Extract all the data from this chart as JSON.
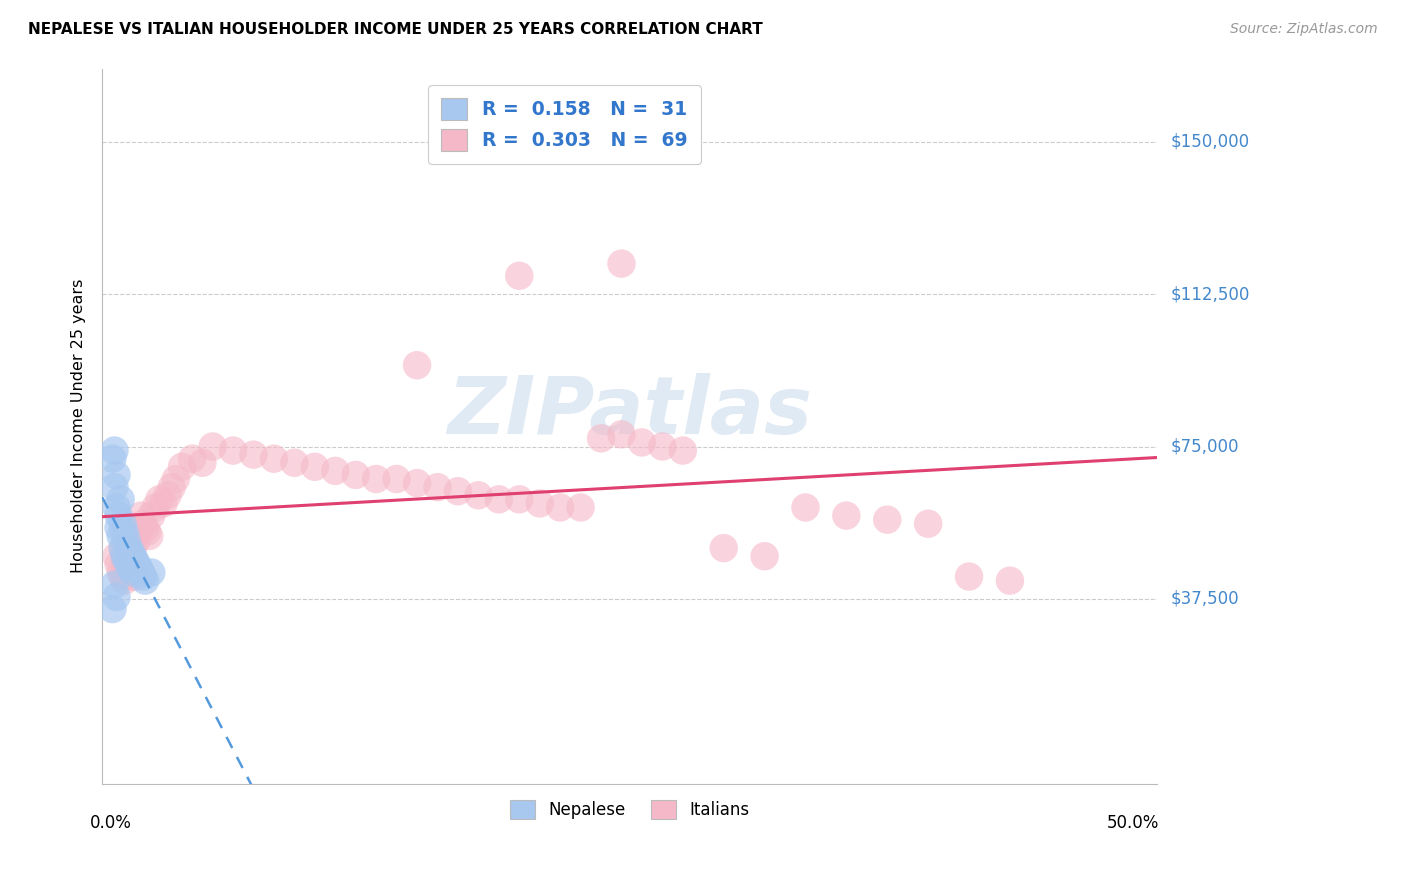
{
  "title": "NEPALESE VS ITALIAN HOUSEHOLDER INCOME UNDER 25 YEARS CORRELATION CHART",
  "source": "Source: ZipAtlas.com",
  "ylabel": "Householder Income Under 25 years",
  "ytick_labels": [
    "$37,500",
    "$75,000",
    "$112,500",
    "$150,000"
  ],
  "ytick_values": [
    37500,
    75000,
    112500,
    150000
  ],
  "ymin": -8000,
  "ymax": 168000,
  "xmin": -0.004,
  "xmax": 0.512,
  "watermark": "ZIPatlas",
  "nepalese_color": "#a8c8f0",
  "italian_color": "#f5b8c8",
  "nepalese_line_color": "#5599dd",
  "italian_line_color": "#e04070",
  "grid_color": "#cccccc",
  "background_color": "#ffffff",
  "nepalese_x": [
    0.001,
    0.002,
    0.002,
    0.003,
    0.003,
    0.004,
    0.004,
    0.005,
    0.005,
    0.006,
    0.006,
    0.007,
    0.007,
    0.008,
    0.008,
    0.009,
    0.009,
    0.01,
    0.01,
    0.011,
    0.011,
    0.012,
    0.013,
    0.014,
    0.015,
    0.016,
    0.017,
    0.002,
    0.003,
    0.001,
    0.02
  ],
  "nepalese_y": [
    72000,
    74000,
    65000,
    68000,
    60000,
    58000,
    55000,
    62000,
    53000,
    56000,
    50000,
    54000,
    48000,
    52000,
    47000,
    50000,
    46000,
    49000,
    45000,
    48000,
    44000,
    47000,
    46000,
    45000,
    44000,
    43000,
    42000,
    41000,
    38000,
    35000,
    44000
  ],
  "italian_x": [
    0.003,
    0.004,
    0.005,
    0.006,
    0.006,
    0.007,
    0.007,
    0.008,
    0.008,
    0.009,
    0.009,
    0.01,
    0.01,
    0.011,
    0.012,
    0.012,
    0.013,
    0.014,
    0.015,
    0.015,
    0.016,
    0.017,
    0.018,
    0.019,
    0.02,
    0.022,
    0.024,
    0.026,
    0.028,
    0.03,
    0.032,
    0.035,
    0.04,
    0.045,
    0.05,
    0.06,
    0.07,
    0.08,
    0.09,
    0.1,
    0.11,
    0.12,
    0.13,
    0.14,
    0.15,
    0.16,
    0.17,
    0.18,
    0.19,
    0.2,
    0.21,
    0.22,
    0.23,
    0.24,
    0.25,
    0.26,
    0.27,
    0.28,
    0.3,
    0.32,
    0.34,
    0.36,
    0.38,
    0.4,
    0.42,
    0.44,
    0.25,
    0.2,
    0.15
  ],
  "italian_y": [
    48000,
    46000,
    44000,
    50000,
    43000,
    47000,
    42000,
    50000,
    44000,
    48000,
    43000,
    52000,
    44000,
    50000,
    55000,
    43000,
    52000,
    54000,
    58000,
    44000,
    56000,
    55000,
    54000,
    53000,
    58000,
    60000,
    62000,
    61000,
    63000,
    65000,
    67000,
    70000,
    72000,
    71000,
    75000,
    74000,
    73000,
    72000,
    71000,
    70000,
    69000,
    68000,
    67000,
    67000,
    66000,
    65000,
    64000,
    63000,
    62000,
    62000,
    61000,
    60000,
    60000,
    77000,
    78000,
    76000,
    75000,
    74000,
    50000,
    48000,
    60000,
    58000,
    57000,
    56000,
    43000,
    42000,
    120000,
    117000,
    95000
  ]
}
